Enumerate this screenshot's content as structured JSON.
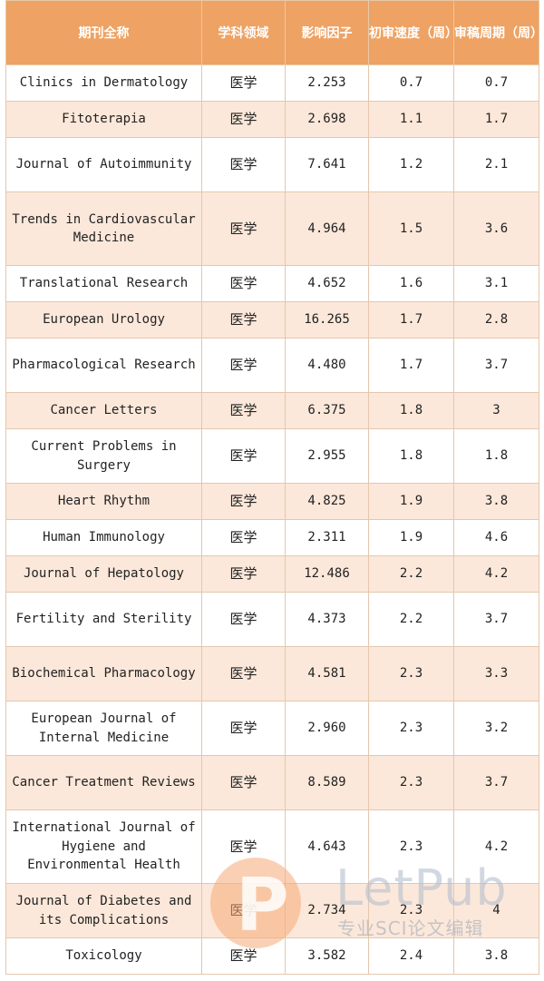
{
  "header": {
    "name": "期刊全称",
    "field": "学科领域",
    "impact": "影响因子",
    "first_review": "初审速度（周）",
    "review_cycle": "审稿周期（周）"
  },
  "rows": [
    {
      "name": "Clinics in Dermatology",
      "field": "医学",
      "impact": "2.253",
      "first": "0.7",
      "cycle": "0.7"
    },
    {
      "name": "Fitoterapia",
      "field": "医学",
      "impact": "2.698",
      "first": "1.1",
      "cycle": "1.7"
    },
    {
      "name": "Journal of Autoimmunity",
      "field": "医学",
      "impact": "7.641",
      "first": "1.2",
      "cycle": "2.1"
    },
    {
      "name": "Trends in Cardiovascular Medicine",
      "field": "医学",
      "impact": "4.964",
      "first": "1.5",
      "cycle": "3.6"
    },
    {
      "name": "Translational Research",
      "field": "医学",
      "impact": "4.652",
      "first": "1.6",
      "cycle": "3.1"
    },
    {
      "name": "European Urology",
      "field": "医学",
      "impact": "16.265",
      "first": "1.7",
      "cycle": "2.8"
    },
    {
      "name": "Pharmacological Research",
      "field": "医学",
      "impact": "4.480",
      "first": "1.7",
      "cycle": "3.7"
    },
    {
      "name": "Cancer Letters",
      "field": "医学",
      "impact": "6.375",
      "first": "1.8",
      "cycle": "3"
    },
    {
      "name": "Current Problems in Surgery",
      "field": "医学",
      "impact": "2.955",
      "first": "1.8",
      "cycle": "1.8"
    },
    {
      "name": "Heart Rhythm",
      "field": "医学",
      "impact": "4.825",
      "first": "1.9",
      "cycle": "3.8"
    },
    {
      "name": "Human Immunology",
      "field": "医学",
      "impact": "2.311",
      "first": "1.9",
      "cycle": "4.6"
    },
    {
      "name": "Journal of Hepatology",
      "field": "医学",
      "impact": "12.486",
      "first": "2.2",
      "cycle": "4.2"
    },
    {
      "name": "Fertility and Sterility",
      "field": "医学",
      "impact": "4.373",
      "first": "2.2",
      "cycle": "3.7"
    },
    {
      "name": "Biochemical Pharmacology",
      "field": "医学",
      "impact": "4.581",
      "first": "2.3",
      "cycle": "3.3"
    },
    {
      "name": "European Journal of Internal Medicine",
      "field": "医学",
      "impact": "2.960",
      "first": "2.3",
      "cycle": "3.2"
    },
    {
      "name": "Cancer Treatment Reviews",
      "field": "医学",
      "impact": "8.589",
      "first": "2.3",
      "cycle": "3.7"
    },
    {
      "name": "International Journal of Hygiene and Environmental Health",
      "field": "医学",
      "impact": "4.643",
      "first": "2.3",
      "cycle": "4.2"
    },
    {
      "name": "Journal of Diabetes and its Complications",
      "field": "医学",
      "impact": "2.734",
      "first": "2.3",
      "cycle": "4"
    },
    {
      "name": "Toxicology",
      "field": "医学",
      "impact": "3.582",
      "first": "2.4",
      "cycle": "3.8"
    }
  ],
  "watermark": {
    "brand": "LetPub",
    "subtitle": "专业SCI论文编辑"
  }
}
